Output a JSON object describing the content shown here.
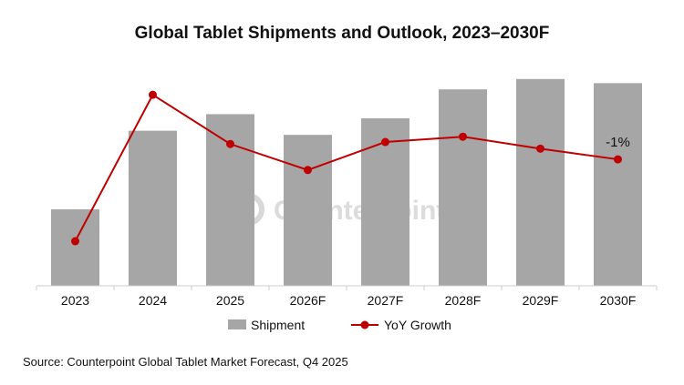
{
  "chart_data": {
    "type": "bar+line",
    "title": "Global Tablet Shipments and Outlook, 2023–2030F",
    "categories": [
      "2023",
      "2024",
      "2025",
      "2026F",
      "2027F",
      "2028F",
      "2029F",
      "2030F"
    ],
    "series": [
      {
        "name": "Shipment",
        "type": "bar",
        "color": "#a6a6a6",
        "values": [
          37,
          75,
          83,
          73,
          81,
          95,
          100,
          98
        ]
      },
      {
        "name": "YoY Growth",
        "type": "line",
        "color": "#c00000",
        "values": [
          -13.3,
          8.7,
          1.3,
          -2.6,
          1.6,
          2.4,
          0.6,
          -1
        ]
      }
    ],
    "annotations": [
      {
        "category": "2030F",
        "series": "YoY Growth",
        "text": "-1%"
      }
    ],
    "bar_ylim": [
      0,
      103
    ],
    "line_ylim": [
      -20,
      12
    ],
    "y_axis_labels_shown": false,
    "grid": false,
    "legend_placement": "bottom",
    "watermark": "Counterpoint"
  },
  "source": "Source: Counterpoint Global Tablet Market Forecast, Q4 2025"
}
